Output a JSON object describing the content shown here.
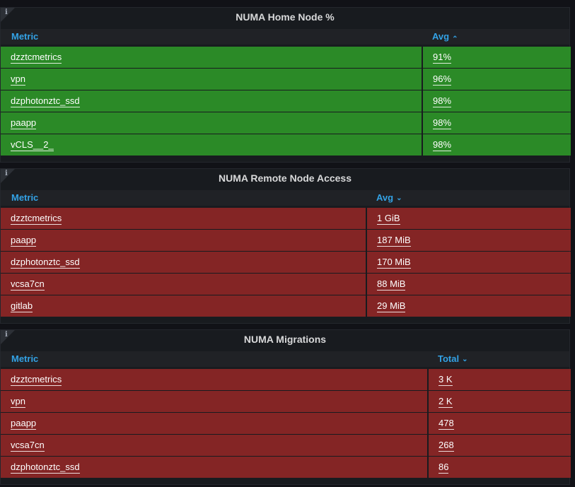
{
  "colors": {
    "good": "#2b8a27",
    "bad": "#842525",
    "header_text": "#33a2e5"
  },
  "panels": [
    {
      "title": "NUMA Home Node %",
      "info_icon": "info-icon",
      "columns": {
        "metric": "Metric",
        "value": "Avg",
        "sort": "ascending"
      },
      "sort_icon": "⌃",
      "status": "good",
      "rows": [
        {
          "metric": "dzztcmetrics",
          "value": "91%"
        },
        {
          "metric": "vpn",
          "value": "96%"
        },
        {
          "metric": "dzphotonztc_ssd",
          "value": "98%"
        },
        {
          "metric": "paapp",
          "value": "98%"
        },
        {
          "metric": "vCLS__2_",
          "value": "98%"
        }
      ]
    },
    {
      "title": "NUMA Remote Node Access",
      "info_icon": "info-icon",
      "columns": {
        "metric": "Metric",
        "value": "Avg",
        "sort": "descending"
      },
      "sort_icon": "⌄",
      "status": "bad",
      "rows": [
        {
          "metric": "dzztcmetrics",
          "value": "1 GiB"
        },
        {
          "metric": "paapp",
          "value": "187 MiB"
        },
        {
          "metric": "dzphotonztc_ssd",
          "value": "170 MiB"
        },
        {
          "metric": "vcsa7cn",
          "value": "88 MiB"
        },
        {
          "metric": "gitlab",
          "value": "29 MiB"
        }
      ]
    },
    {
      "title": "NUMA Migrations",
      "info_icon": "info-icon",
      "columns": {
        "metric": "Metric",
        "value": "Total",
        "sort": "descending"
      },
      "sort_icon": "⌄",
      "status": "bad",
      "rows": [
        {
          "metric": "dzztcmetrics",
          "value": "3 K"
        },
        {
          "metric": "vpn",
          "value": "2 K"
        },
        {
          "metric": "paapp",
          "value": "478"
        },
        {
          "metric": "vcsa7cn",
          "value": "268"
        },
        {
          "metric": "dzphotonztc_ssd",
          "value": "86"
        }
      ]
    }
  ]
}
